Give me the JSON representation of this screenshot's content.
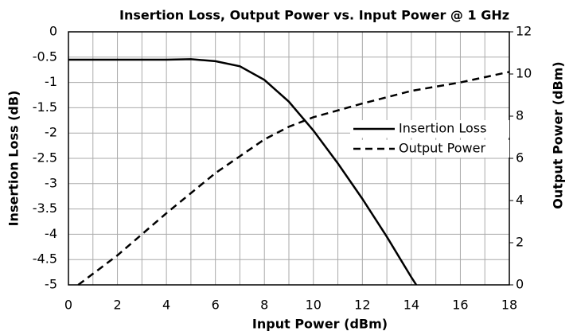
{
  "chart_data": {
    "type": "line",
    "title": "Insertion Loss, Output Power vs. Input Power @ 1 GHz",
    "xlabel": "Input Power (dBm)",
    "ylabel": "Insertion Loss (dB)",
    "y2label": "Output Power (dBm)",
    "xlim": [
      0,
      18
    ],
    "xticks": [
      0,
      2,
      4,
      6,
      8,
      10,
      12,
      14,
      16,
      18
    ],
    "xminor": [
      1,
      3,
      5,
      7,
      9,
      11,
      13,
      15,
      17
    ],
    "ylim": [
      -5,
      0
    ],
    "yticks": [
      0,
      -0.5,
      -1,
      -1.5,
      -2,
      -2.5,
      -3,
      -3.5,
      -4,
      -4.5,
      -5
    ],
    "y2lim": [
      0,
      12
    ],
    "y2ticks": [
      0,
      2,
      4,
      6,
      8,
      10,
      12
    ],
    "grid": true,
    "legend": "right",
    "series": [
      {
        "name": "Insertion Loss",
        "color": "#000000",
        "dash": "solid",
        "x": [
          0,
          1,
          2,
          3,
          4,
          5,
          6,
          7,
          8,
          9,
          10,
          11,
          12,
          13,
          14,
          14.2
        ],
        "values": [
          -0.55,
          -0.55,
          -0.55,
          -0.55,
          -0.55,
          -0.54,
          -0.58,
          -0.68,
          -0.95,
          -1.38,
          -1.95,
          -2.6,
          -3.3,
          -4.05,
          -4.85,
          -5
        ]
      },
      {
        "name": "Output Power",
        "color": "#000000",
        "dash": "dashed",
        "axis": "y2",
        "x": [
          0.4,
          2,
          4,
          6,
          7,
          8,
          9,
          10,
          12,
          14,
          16,
          18
        ],
        "values": [
          0,
          1.4,
          3.4,
          5.3,
          6.1,
          6.9,
          7.5,
          7.95,
          8.6,
          9.2,
          9.6,
          10.1
        ]
      }
    ]
  }
}
